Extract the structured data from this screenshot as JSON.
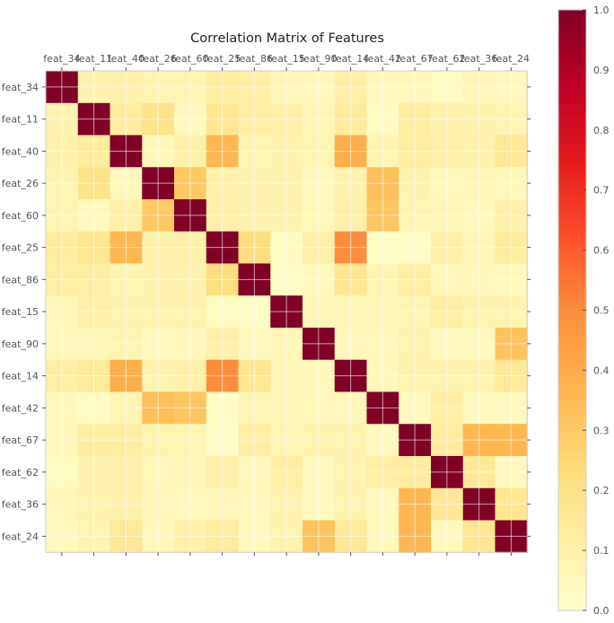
{
  "chart_data": {
    "type": "heatmap",
    "title": "Correlation Matrix of Features",
    "x_tick_position": "top",
    "grid": true,
    "features": [
      "feat_34",
      "feat_11",
      "feat_40",
      "feat_26",
      "feat_60",
      "feat_25",
      "feat_86",
      "feat_15",
      "feat_90",
      "feat_14",
      "feat_42",
      "feat_67",
      "feat_62",
      "feat_36",
      "feat_24"
    ],
    "matrix": [
      [
        1.0,
        0.08,
        0.09,
        0.07,
        0.07,
        0.13,
        0.11,
        0.06,
        0.05,
        0.11,
        0.05,
        0.05,
        0.03,
        0.06,
        0.04
      ],
      [
        0.08,
        1.0,
        0.13,
        0.19,
        0.04,
        0.16,
        0.11,
        0.1,
        0.06,
        0.14,
        0.03,
        0.12,
        0.09,
        0.08,
        0.07
      ],
      [
        0.09,
        0.13,
        1.0,
        0.05,
        0.1,
        0.36,
        0.07,
        0.08,
        0.07,
        0.39,
        0.07,
        0.12,
        0.1,
        0.09,
        0.15
      ],
      [
        0.07,
        0.19,
        0.05,
        1.0,
        0.3,
        0.09,
        0.08,
        0.08,
        0.04,
        0.08,
        0.33,
        0.08,
        0.05,
        0.06,
        0.05
      ],
      [
        0.07,
        0.04,
        0.1,
        0.3,
        1.0,
        0.1,
        0.08,
        0.08,
        0.05,
        0.1,
        0.31,
        0.07,
        0.06,
        0.04,
        0.1
      ],
      [
        0.13,
        0.16,
        0.36,
        0.09,
        0.1,
        1.0,
        0.22,
        0.03,
        0.1,
        0.5,
        0.02,
        0.02,
        0.1,
        0.06,
        0.13
      ],
      [
        0.11,
        0.11,
        0.07,
        0.08,
        0.08,
        0.22,
        1.0,
        0.02,
        0.04,
        0.17,
        0.07,
        0.11,
        0.05,
        0.05,
        0.04
      ],
      [
        0.06,
        0.1,
        0.08,
        0.08,
        0.08,
        0.03,
        0.02,
        1.0,
        0.06,
        0.06,
        0.06,
        0.07,
        0.11,
        0.08,
        0.08
      ],
      [
        0.05,
        0.06,
        0.07,
        0.04,
        0.05,
        0.1,
        0.04,
        0.06,
        1.0,
        0.05,
        0.05,
        0.08,
        0.04,
        0.04,
        0.32
      ],
      [
        0.11,
        0.14,
        0.39,
        0.08,
        0.1,
        0.5,
        0.17,
        0.06,
        0.05,
        1.0,
        0.05,
        0.08,
        0.08,
        0.08,
        0.15
      ],
      [
        0.05,
        0.03,
        0.07,
        0.33,
        0.31,
        0.02,
        0.07,
        0.06,
        0.05,
        0.05,
        1.0,
        0.04,
        0.11,
        0.04,
        0.04
      ],
      [
        0.05,
        0.12,
        0.12,
        0.08,
        0.07,
        0.02,
        0.11,
        0.07,
        0.08,
        0.08,
        0.04,
        1.0,
        0.13,
        0.36,
        0.36
      ],
      [
        0.03,
        0.09,
        0.1,
        0.05,
        0.06,
        0.1,
        0.05,
        0.11,
        0.04,
        0.08,
        0.11,
        0.13,
        1.0,
        0.15,
        0.04
      ],
      [
        0.06,
        0.08,
        0.09,
        0.06,
        0.04,
        0.06,
        0.05,
        0.08,
        0.04,
        0.08,
        0.04,
        0.36,
        0.15,
        1.0,
        0.17
      ],
      [
        0.04,
        0.07,
        0.15,
        0.05,
        0.1,
        0.13,
        0.04,
        0.08,
        0.32,
        0.15,
        0.04,
        0.36,
        0.04,
        0.17,
        1.0
      ]
    ],
    "value_range": [
      0.0,
      1.0
    ],
    "colormap": "YlOrRd",
    "colormap_stops": [
      "#ffffcc",
      "#ffeda0",
      "#fed976",
      "#feb24c",
      "#fd8d3c",
      "#fc4e2a",
      "#e31a1c",
      "#bd0026",
      "#800026"
    ],
    "colorbar": {
      "ticks": [
        0.0,
        0.1,
        0.2,
        0.3,
        0.4,
        0.5,
        0.6,
        0.7,
        0.8,
        0.9,
        1.0
      ],
      "tick_labels": [
        "0.0",
        "0.1",
        "0.2",
        "0.3",
        "0.4",
        "0.5",
        "0.6",
        "0.7",
        "0.8",
        "0.9",
        "1.0"
      ]
    }
  }
}
